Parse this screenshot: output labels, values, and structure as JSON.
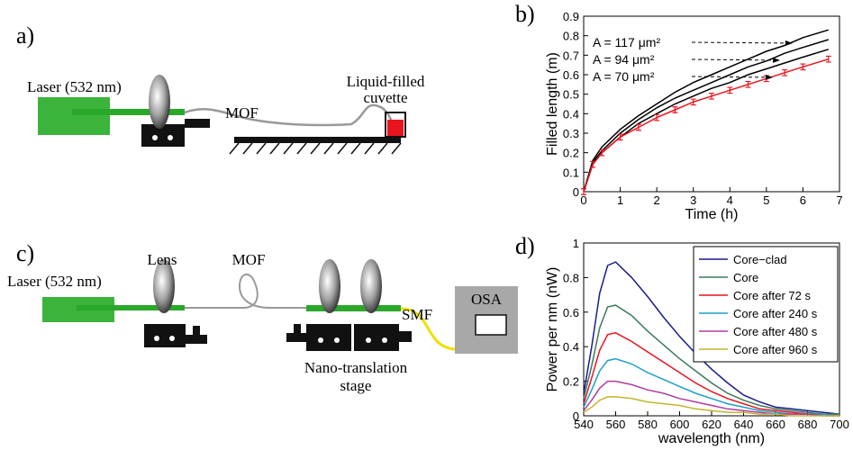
{
  "panel_labels": [
    "a)",
    "b)",
    "c)",
    "d)"
  ],
  "diagram_a": {
    "laser": "Laser (532 nm)",
    "fiber": "MOF",
    "cuvette": [
      "Liquid-filled",
      "cuvette"
    ]
  },
  "diagram_c": {
    "laser": "Laser (532 nm)",
    "lens": "Lens",
    "fiber": "MOF",
    "output_fiber": "SMF",
    "analyzer": "OSA",
    "stage": [
      "Nano-translation",
      "stage"
    ]
  },
  "chart_data": [
    {
      "type": "line",
      "xlabel": "Time (h)",
      "ylabel": "Filled length (m)",
      "xlim": [
        0,
        7
      ],
      "ylim": [
        0,
        0.9
      ],
      "xticks": [
        0,
        1,
        2,
        3,
        4,
        5,
        6,
        7
      ],
      "yticks": [
        0,
        0.1,
        0.2,
        0.3,
        0.4,
        0.5,
        0.6,
        0.7,
        0.8,
        0.9
      ],
      "annotations": [
        "A = 117 μm²",
        "A = 94 μm²",
        "A = 70 μm²"
      ],
      "x": [
        0,
        0.25,
        0.5,
        1,
        1.5,
        2,
        2.5,
        3,
        3.5,
        4,
        4.5,
        5,
        5.5,
        6,
        6.7
      ],
      "series": [
        {
          "color": "#000000",
          "values": [
            0,
            0.16,
            0.23,
            0.32,
            0.39,
            0.45,
            0.51,
            0.56,
            0.6,
            0.64,
            0.68,
            0.72,
            0.75,
            0.79,
            0.83
          ]
        },
        {
          "color": "#000000",
          "values": [
            0,
            0.15,
            0.21,
            0.3,
            0.37,
            0.43,
            0.48,
            0.52,
            0.56,
            0.6,
            0.64,
            0.67,
            0.71,
            0.74,
            0.78
          ]
        },
        {
          "color": "#000000",
          "values": [
            0,
            0.14,
            0.2,
            0.28,
            0.35,
            0.4,
            0.45,
            0.49,
            0.53,
            0.56,
            0.6,
            0.63,
            0.66,
            0.69,
            0.73
          ]
        },
        {
          "color": "#e8141e",
          "values": [
            0,
            0.14,
            0.2,
            0.28,
            0.33,
            0.38,
            0.42,
            0.46,
            0.49,
            0.52,
            0.55,
            0.58,
            0.61,
            0.64,
            0.68
          ],
          "errors": [
            0.015,
            0.015,
            0.015,
            0.015,
            0.015,
            0.015,
            0.015,
            0.015,
            0.015,
            0.015,
            0.015,
            0.015,
            0.015,
            0.015,
            0.015
          ]
        }
      ]
    },
    {
      "type": "line",
      "xlabel": "wavelength (nm)",
      "ylabel": "Power per nm (nW)",
      "xlim": [
        540,
        700
      ],
      "ylim": [
        0,
        1
      ],
      "xticks": [
        540,
        560,
        580,
        600,
        620,
        640,
        660,
        680,
        700
      ],
      "yticks": [
        0,
        0.2,
        0.4,
        0.6,
        0.8,
        1
      ],
      "legend": "upper right",
      "x": [
        540,
        545,
        550,
        555,
        560,
        570,
        580,
        590,
        600,
        610,
        620,
        630,
        640,
        650,
        660,
        670,
        680,
        690,
        700
      ],
      "series": [
        {
          "name": "Core−clad",
          "color": "#1c1c8c",
          "values": [
            0.13,
            0.4,
            0.71,
            0.87,
            0.89,
            0.8,
            0.69,
            0.57,
            0.46,
            0.36,
            0.27,
            0.19,
            0.12,
            0.08,
            0.05,
            0.04,
            0.03,
            0.02,
            0.01
          ]
        },
        {
          "name": "Core",
          "color": "#3c7a5c",
          "values": [
            0.1,
            0.29,
            0.51,
            0.63,
            0.64,
            0.58,
            0.49,
            0.41,
            0.33,
            0.26,
            0.19,
            0.13,
            0.09,
            0.06,
            0.04,
            0.03,
            0.02,
            0.01,
            0.01
          ]
        },
        {
          "name": "Core after 72 s",
          "color": "#e8141e",
          "values": [
            0.07,
            0.22,
            0.38,
            0.47,
            0.48,
            0.43,
            0.37,
            0.31,
            0.25,
            0.19,
            0.14,
            0.1,
            0.07,
            0.04,
            0.03,
            0.02,
            0.01,
            0.01,
            0
          ]
        },
        {
          "name": "Core after 240 s",
          "color": "#1aa0c8",
          "values": [
            0.05,
            0.15,
            0.26,
            0.32,
            0.33,
            0.3,
            0.25,
            0.21,
            0.17,
            0.13,
            0.1,
            0.07,
            0.05,
            0.03,
            0.02,
            0.01,
            0.01,
            0.01,
            0
          ]
        },
        {
          "name": "Core after 480 s",
          "color": "#b03ca0",
          "values": [
            0.03,
            0.09,
            0.16,
            0.2,
            0.2,
            0.18,
            0.15,
            0.13,
            0.1,
            0.08,
            0.06,
            0.04,
            0.03,
            0.02,
            0.01,
            0.01,
            0.01,
            0,
            0
          ]
        },
        {
          "name": "Core after 960 s",
          "color": "#c4b430",
          "values": [
            0.02,
            0.05,
            0.09,
            0.11,
            0.11,
            0.1,
            0.08,
            0.07,
            0.06,
            0.04,
            0.03,
            0.02,
            0.02,
            0.01,
            0.01,
            0,
            0,
            0,
            0
          ]
        }
      ]
    }
  ]
}
